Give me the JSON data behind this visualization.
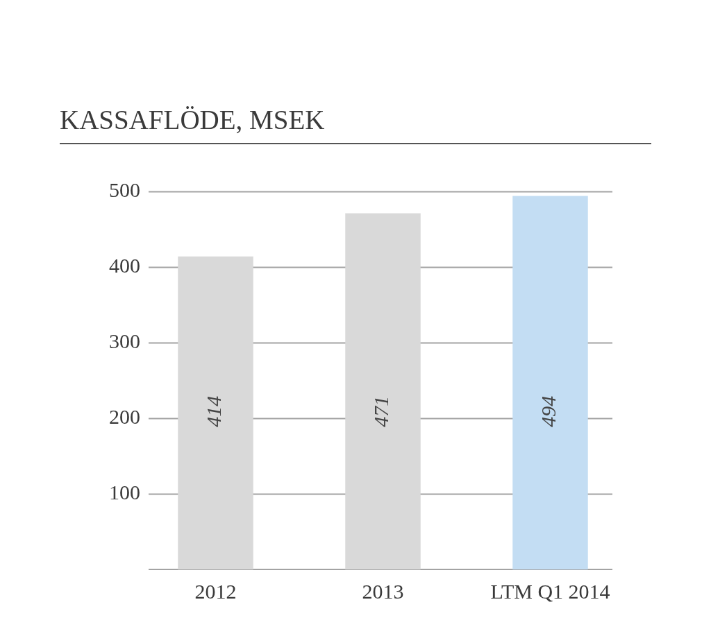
{
  "chart_data": {
    "type": "bar",
    "title": "KASSAFLÖDE, MSEK",
    "categories": [
      "2012",
      "2013",
      "LTM Q1 2014"
    ],
    "values": [
      414,
      471,
      494
    ],
    "colors": [
      "#d9d9d9",
      "#d9d9d9",
      "#c3ddf3"
    ],
    "ylim": [
      0,
      500
    ],
    "yticks": [
      100,
      200,
      300,
      400,
      500
    ],
    "grid": "y",
    "data_labels": true
  }
}
